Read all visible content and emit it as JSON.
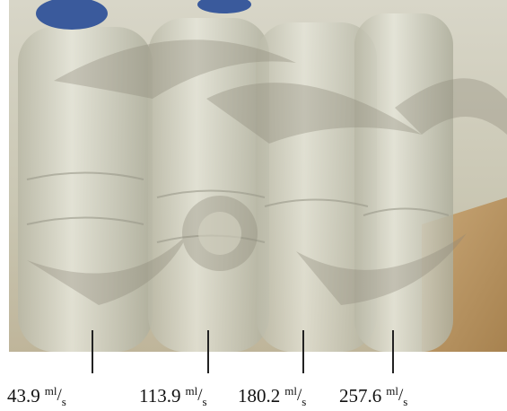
{
  "labels": [
    {
      "number": 43.9,
      "unit_top": "ml",
      "slash": "/",
      "unit_bottom": "s"
    },
    {
      "number": 113.9,
      "unit_top": "ml",
      "slash": "/",
      "unit_bottom": "s"
    },
    {
      "number": 180.2,
      "unit_top": "ml",
      "slash": "/",
      "unit_bottom": "s"
    },
    {
      "number": 257.6,
      "unit_top": "ml",
      "slash": "/",
      "unit_bottom": "s"
    }
  ]
}
